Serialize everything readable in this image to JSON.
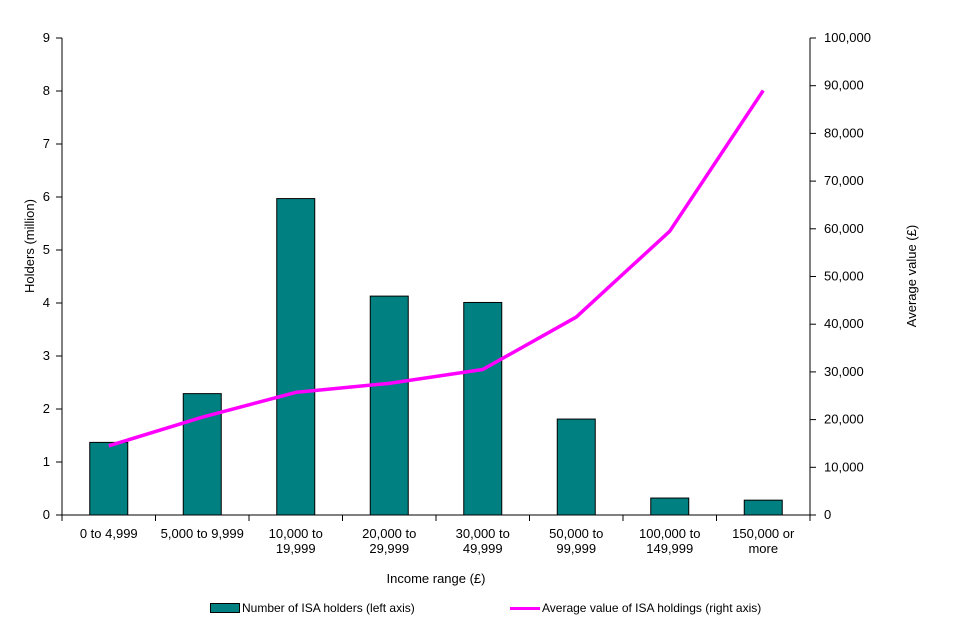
{
  "chart_data": {
    "type": "bar+line",
    "categories": [
      [
        "0 to 4,999"
      ],
      [
        "5,000 to 9,999"
      ],
      [
        "10,000 to",
        "19,999"
      ],
      [
        "20,000 to",
        "29,999"
      ],
      [
        "30,000 to",
        "49,999"
      ],
      [
        "50,000 to",
        "99,999"
      ],
      [
        "100,000 to",
        "149,999"
      ],
      [
        "150,000 or",
        "more"
      ]
    ],
    "series": [
      {
        "name": "Number of ISA holders (left axis)",
        "type": "bar",
        "axis": "left",
        "values": [
          1.37,
          2.29,
          5.97,
          4.13,
          4.01,
          1.81,
          0.32,
          0.28
        ],
        "color": "#008080"
      },
      {
        "name": "Average value of ISA holdings (right axis)",
        "type": "line",
        "axis": "right",
        "values": [
          14500,
          20500,
          25700,
          27600,
          30500,
          41500,
          59500,
          89000
        ],
        "color": "#ff00ff"
      }
    ],
    "xlabel": "Income range (£)",
    "ylabel_left": "Holders (million)",
    "ylabel_right": "Average value (£)",
    "ylim_left": [
      0,
      9
    ],
    "ylim_right": [
      0,
      100000
    ],
    "yticks_left": [
      "0",
      "1",
      "2",
      "3",
      "4",
      "5",
      "6",
      "7",
      "8",
      "9"
    ],
    "yticks_right": [
      "0",
      "10,000",
      "20,000",
      "30,000",
      "40,000",
      "50,000",
      "60,000",
      "70,000",
      "80,000",
      "90,000",
      "100,000"
    ],
    "grid": false,
    "legend_position": "bottom"
  }
}
